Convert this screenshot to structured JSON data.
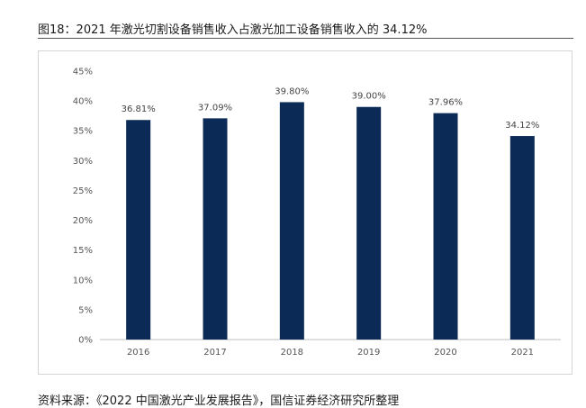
{
  "figure_title": "图18：2021 年激光切割设备销售收入占激光加工设备销售收入的 34.12%",
  "source_note": "资料来源：《2022 中国激光产业发展报告》，国信证券经济研究所整理",
  "colors": {
    "bar": "#0b2a56",
    "axis": "#bfbfbf"
  },
  "chart_data": {
    "type": "bar",
    "categories": [
      "2016",
      "2017",
      "2018",
      "2019",
      "2020",
      "2021"
    ],
    "values": [
      36.81,
      37.09,
      39.8,
      39.0,
      37.96,
      34.12
    ],
    "data_labels": [
      "36.81%",
      "37.09%",
      "39.80%",
      "39.00%",
      "37.96%",
      "34.12%"
    ],
    "y_ticks": [
      "0%",
      "5%",
      "10%",
      "15%",
      "20%",
      "25%",
      "30%",
      "35%",
      "40%",
      "45%"
    ],
    "ylim": [
      0,
      45
    ],
    "grid": false,
    "legend": "none"
  }
}
